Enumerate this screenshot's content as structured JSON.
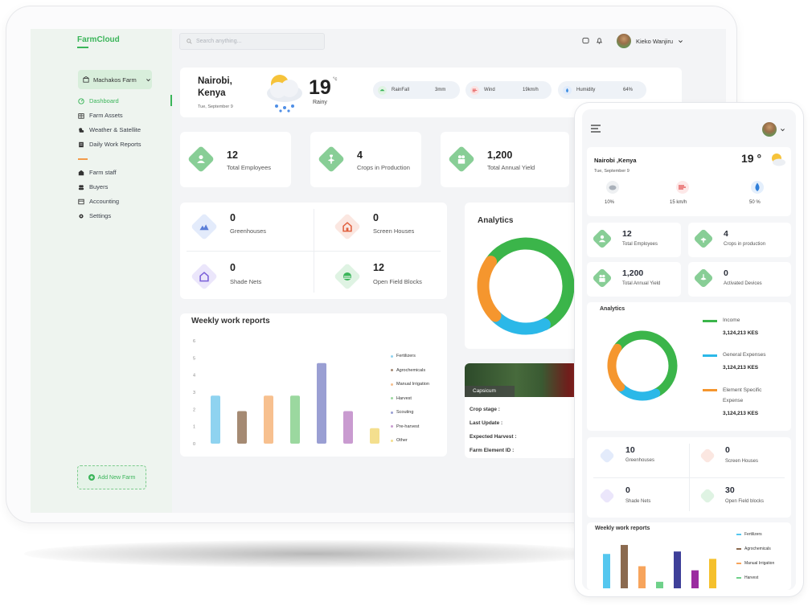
{
  "app": {
    "logo": "FarmCloud"
  },
  "sidebar": {
    "farm": "Machakos Farm",
    "items": [
      {
        "label": "Dashboard",
        "icon": "dashboard-icon"
      },
      {
        "label": "Farm Assets",
        "icon": "assets-icon"
      },
      {
        "label": "Weather & Satellite",
        "icon": "weather-icon"
      },
      {
        "label": "Daily Work Reports",
        "icon": "reports-icon"
      },
      {
        "label": "Farm staff",
        "icon": "staff-icon"
      },
      {
        "label": "Buyers",
        "icon": "buyers-icon"
      },
      {
        "label": "Accounting",
        "icon": "accounting-icon"
      },
      {
        "label": "Settings",
        "icon": "settings-icon"
      }
    ],
    "add_farm": "Add New Farm"
  },
  "header": {
    "search_placeholder": "Search anything...",
    "user_name": "Kieko Wanjiru"
  },
  "weather": {
    "city": "Nairobi,",
    "country": "Kenya",
    "date": "Tue, September 9",
    "temp": "19",
    "unit": "°c",
    "condition": "Rainy",
    "pills": [
      {
        "label": "RainFall",
        "value": "3mm"
      },
      {
        "label": "Wind",
        "value": "19km/h"
      },
      {
        "label": "Humidity",
        "value": "64%"
      }
    ]
  },
  "stats": [
    {
      "value": "12",
      "label": "Total Employees"
    },
    {
      "value": "4",
      "label": "Crops in Production"
    },
    {
      "value": "1,200",
      "label": "Total Annual Yield"
    }
  ],
  "facilities": [
    {
      "value": "0",
      "label": "Greenhouses"
    },
    {
      "value": "0",
      "label": "Screen Houses"
    },
    {
      "value": "0",
      "label": "Shade Nets"
    },
    {
      "value": "12",
      "label": "Open Field Blocks"
    }
  ],
  "analytics": {
    "title": "Analytics"
  },
  "weekly": {
    "title": "Weekly work reports"
  },
  "chart_data": [
    {
      "type": "bar",
      "title": "Weekly work reports",
      "categories": [
        "Fertilizers",
        "Agrochemicals",
        "Manual Irrigation",
        "Harvest",
        "Scouting",
        "Pre-harvest",
        "Other"
      ],
      "values": [
        2.8,
        1.9,
        2.8,
        2.8,
        4.7,
        1.9,
        0.9
      ],
      "colors": [
        "#8fd3f0",
        "#a58a73",
        "#f7c08f",
        "#9bd89f",
        "#9a9fd3",
        "#c99bd0",
        "#f4df8e"
      ],
      "yticks": [
        "0",
        "1",
        "2",
        "3",
        "4",
        "5",
        "6"
      ],
      "ylim": [
        0,
        6
      ],
      "legend": "right"
    },
    {
      "type": "pie",
      "title": "Analytics",
      "labels": [
        "Income",
        "General Expenses",
        "Element Specific Expense"
      ],
      "values": [
        58,
        20,
        22
      ],
      "colors": [
        "#3bb54a",
        "#2bb8e8",
        "#f5962e"
      ]
    },
    {
      "type": "bar",
      "title": "Weekly work reports",
      "categories": [
        "Fertilizers",
        "Agrochemicals",
        "Manual Irrigation",
        "Harvest",
        "Scouting",
        "Pre-harvest",
        "Other"
      ],
      "values": [
        4.2,
        5.3,
        2.7,
        0.8,
        4.5,
        2.2,
        3.6
      ],
      "colors": [
        "#55c7ef",
        "#8b6a4f",
        "#f7a45c",
        "#6fd18a",
        "#3e3f99",
        "#9b2ba0",
        "#f5c02c"
      ],
      "legend": "right"
    }
  ],
  "crop": {
    "name": "Capsicum",
    "fields": [
      {
        "label": "Crop stage :"
      },
      {
        "label": "Last Update :"
      },
      {
        "label": "Expected Harvest :"
      },
      {
        "label": "Farm Element ID :"
      }
    ]
  },
  "phone": {
    "city": "Nairobi ,Kenya",
    "date": "Tue, September 9",
    "temp": "19 °",
    "metrics": [
      {
        "value": "10%"
      },
      {
        "value": "15 km/h"
      },
      {
        "value": "50 %"
      }
    ],
    "stats": [
      {
        "value": "12",
        "label": "Total Employees"
      },
      {
        "value": "4",
        "label": "Crops in production"
      },
      {
        "value": "1,200",
        "label": "Total Annual Yield"
      },
      {
        "value": "0",
        "label": "Activated Devices"
      }
    ],
    "analytics_title": "Analytics",
    "legend": [
      {
        "label": "Income",
        "value": "3,124,213 KES",
        "color": "#3bb54a"
      },
      {
        "label": "General Expenses",
        "value": "3,124,213 KES",
        "color": "#2bb8e8"
      },
      {
        "label": "Element Specific",
        "label2": "Expense",
        "value": "3,124,213 KES",
        "color": "#f5962e"
      }
    ],
    "facilities": [
      {
        "value": "10",
        "label": "Greenhouses"
      },
      {
        "value": "0",
        "label": "Screen Houses"
      },
      {
        "value": "0",
        "label": "Shade Nets"
      },
      {
        "value": "30",
        "label": "Open Field blocks"
      }
    ],
    "weekly_title": "Weekly work reports",
    "weekly_legend": [
      "Fertilizers",
      "Agrochemicals",
      "Manual Irrigation",
      "Harvest"
    ]
  }
}
